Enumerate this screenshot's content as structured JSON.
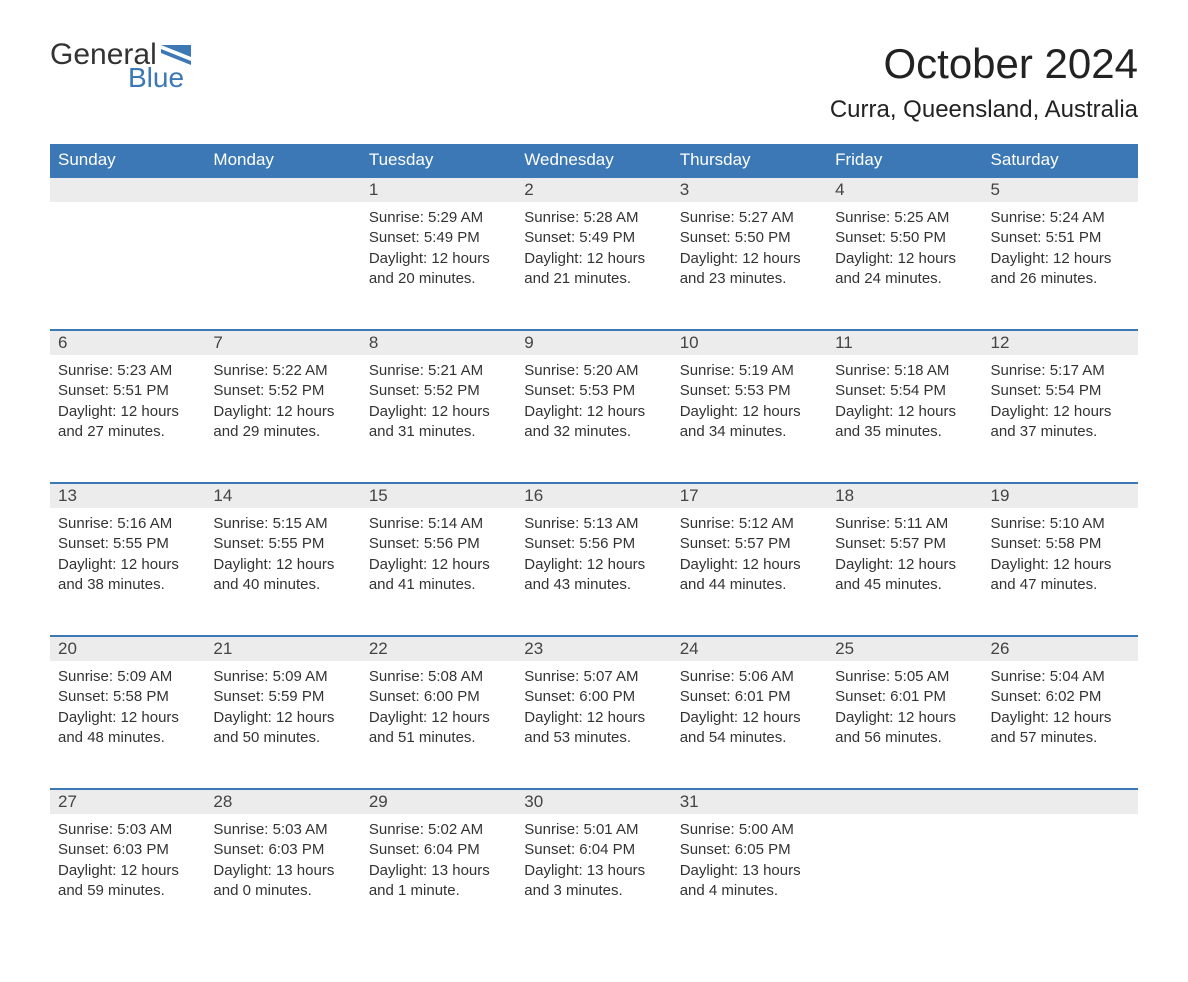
{
  "logo": {
    "general": "General",
    "blue": "Blue",
    "flag_color": "#3b78b5"
  },
  "title": "October 2024",
  "location": "Curra, Queensland, Australia",
  "colors": {
    "header_bg": "#3b78b5",
    "header_text": "#ffffff",
    "daynum_bg": "#ececec",
    "row_border": "#3b78b5",
    "body_text": "#333333",
    "background": "#ffffff"
  },
  "typography": {
    "title_fontsize": 42,
    "location_fontsize": 24,
    "dayheader_fontsize": 17,
    "daynum_fontsize": 17,
    "detail_fontsize": 15,
    "font_family": "Arial"
  },
  "day_headers": [
    "Sunday",
    "Monday",
    "Tuesday",
    "Wednesday",
    "Thursday",
    "Friday",
    "Saturday"
  ],
  "weeks": [
    [
      null,
      null,
      {
        "n": "1",
        "sunrise": "Sunrise: 5:29 AM",
        "sunset": "Sunset: 5:49 PM",
        "daylight": "Daylight: 12 hours and 20 minutes."
      },
      {
        "n": "2",
        "sunrise": "Sunrise: 5:28 AM",
        "sunset": "Sunset: 5:49 PM",
        "daylight": "Daylight: 12 hours and 21 minutes."
      },
      {
        "n": "3",
        "sunrise": "Sunrise: 5:27 AM",
        "sunset": "Sunset: 5:50 PM",
        "daylight": "Daylight: 12 hours and 23 minutes."
      },
      {
        "n": "4",
        "sunrise": "Sunrise: 5:25 AM",
        "sunset": "Sunset: 5:50 PM",
        "daylight": "Daylight: 12 hours and 24 minutes."
      },
      {
        "n": "5",
        "sunrise": "Sunrise: 5:24 AM",
        "sunset": "Sunset: 5:51 PM",
        "daylight": "Daylight: 12 hours and 26 minutes."
      }
    ],
    [
      {
        "n": "6",
        "sunrise": "Sunrise: 5:23 AM",
        "sunset": "Sunset: 5:51 PM",
        "daylight": "Daylight: 12 hours and 27 minutes."
      },
      {
        "n": "7",
        "sunrise": "Sunrise: 5:22 AM",
        "sunset": "Sunset: 5:52 PM",
        "daylight": "Daylight: 12 hours and 29 minutes."
      },
      {
        "n": "8",
        "sunrise": "Sunrise: 5:21 AM",
        "sunset": "Sunset: 5:52 PM",
        "daylight": "Daylight: 12 hours and 31 minutes."
      },
      {
        "n": "9",
        "sunrise": "Sunrise: 5:20 AM",
        "sunset": "Sunset: 5:53 PM",
        "daylight": "Daylight: 12 hours and 32 minutes."
      },
      {
        "n": "10",
        "sunrise": "Sunrise: 5:19 AM",
        "sunset": "Sunset: 5:53 PM",
        "daylight": "Daylight: 12 hours and 34 minutes."
      },
      {
        "n": "11",
        "sunrise": "Sunrise: 5:18 AM",
        "sunset": "Sunset: 5:54 PM",
        "daylight": "Daylight: 12 hours and 35 minutes."
      },
      {
        "n": "12",
        "sunrise": "Sunrise: 5:17 AM",
        "sunset": "Sunset: 5:54 PM",
        "daylight": "Daylight: 12 hours and 37 minutes."
      }
    ],
    [
      {
        "n": "13",
        "sunrise": "Sunrise: 5:16 AM",
        "sunset": "Sunset: 5:55 PM",
        "daylight": "Daylight: 12 hours and 38 minutes."
      },
      {
        "n": "14",
        "sunrise": "Sunrise: 5:15 AM",
        "sunset": "Sunset: 5:55 PM",
        "daylight": "Daylight: 12 hours and 40 minutes."
      },
      {
        "n": "15",
        "sunrise": "Sunrise: 5:14 AM",
        "sunset": "Sunset: 5:56 PM",
        "daylight": "Daylight: 12 hours and 41 minutes."
      },
      {
        "n": "16",
        "sunrise": "Sunrise: 5:13 AM",
        "sunset": "Sunset: 5:56 PM",
        "daylight": "Daylight: 12 hours and 43 minutes."
      },
      {
        "n": "17",
        "sunrise": "Sunrise: 5:12 AM",
        "sunset": "Sunset: 5:57 PM",
        "daylight": "Daylight: 12 hours and 44 minutes."
      },
      {
        "n": "18",
        "sunrise": "Sunrise: 5:11 AM",
        "sunset": "Sunset: 5:57 PM",
        "daylight": "Daylight: 12 hours and 45 minutes."
      },
      {
        "n": "19",
        "sunrise": "Sunrise: 5:10 AM",
        "sunset": "Sunset: 5:58 PM",
        "daylight": "Daylight: 12 hours and 47 minutes."
      }
    ],
    [
      {
        "n": "20",
        "sunrise": "Sunrise: 5:09 AM",
        "sunset": "Sunset: 5:58 PM",
        "daylight": "Daylight: 12 hours and 48 minutes."
      },
      {
        "n": "21",
        "sunrise": "Sunrise: 5:09 AM",
        "sunset": "Sunset: 5:59 PM",
        "daylight": "Daylight: 12 hours and 50 minutes."
      },
      {
        "n": "22",
        "sunrise": "Sunrise: 5:08 AM",
        "sunset": "Sunset: 6:00 PM",
        "daylight": "Daylight: 12 hours and 51 minutes."
      },
      {
        "n": "23",
        "sunrise": "Sunrise: 5:07 AM",
        "sunset": "Sunset: 6:00 PM",
        "daylight": "Daylight: 12 hours and 53 minutes."
      },
      {
        "n": "24",
        "sunrise": "Sunrise: 5:06 AM",
        "sunset": "Sunset: 6:01 PM",
        "daylight": "Daylight: 12 hours and 54 minutes."
      },
      {
        "n": "25",
        "sunrise": "Sunrise: 5:05 AM",
        "sunset": "Sunset: 6:01 PM",
        "daylight": "Daylight: 12 hours and 56 minutes."
      },
      {
        "n": "26",
        "sunrise": "Sunrise: 5:04 AM",
        "sunset": "Sunset: 6:02 PM",
        "daylight": "Daylight: 12 hours and 57 minutes."
      }
    ],
    [
      {
        "n": "27",
        "sunrise": "Sunrise: 5:03 AM",
        "sunset": "Sunset: 6:03 PM",
        "daylight": "Daylight: 12 hours and 59 minutes."
      },
      {
        "n": "28",
        "sunrise": "Sunrise: 5:03 AM",
        "sunset": "Sunset: 6:03 PM",
        "daylight": "Daylight: 13 hours and 0 minutes."
      },
      {
        "n": "29",
        "sunrise": "Sunrise: 5:02 AM",
        "sunset": "Sunset: 6:04 PM",
        "daylight": "Daylight: 13 hours and 1 minute."
      },
      {
        "n": "30",
        "sunrise": "Sunrise: 5:01 AM",
        "sunset": "Sunset: 6:04 PM",
        "daylight": "Daylight: 13 hours and 3 minutes."
      },
      {
        "n": "31",
        "sunrise": "Sunrise: 5:00 AM",
        "sunset": "Sunset: 6:05 PM",
        "daylight": "Daylight: 13 hours and 4 minutes."
      },
      null,
      null
    ]
  ]
}
